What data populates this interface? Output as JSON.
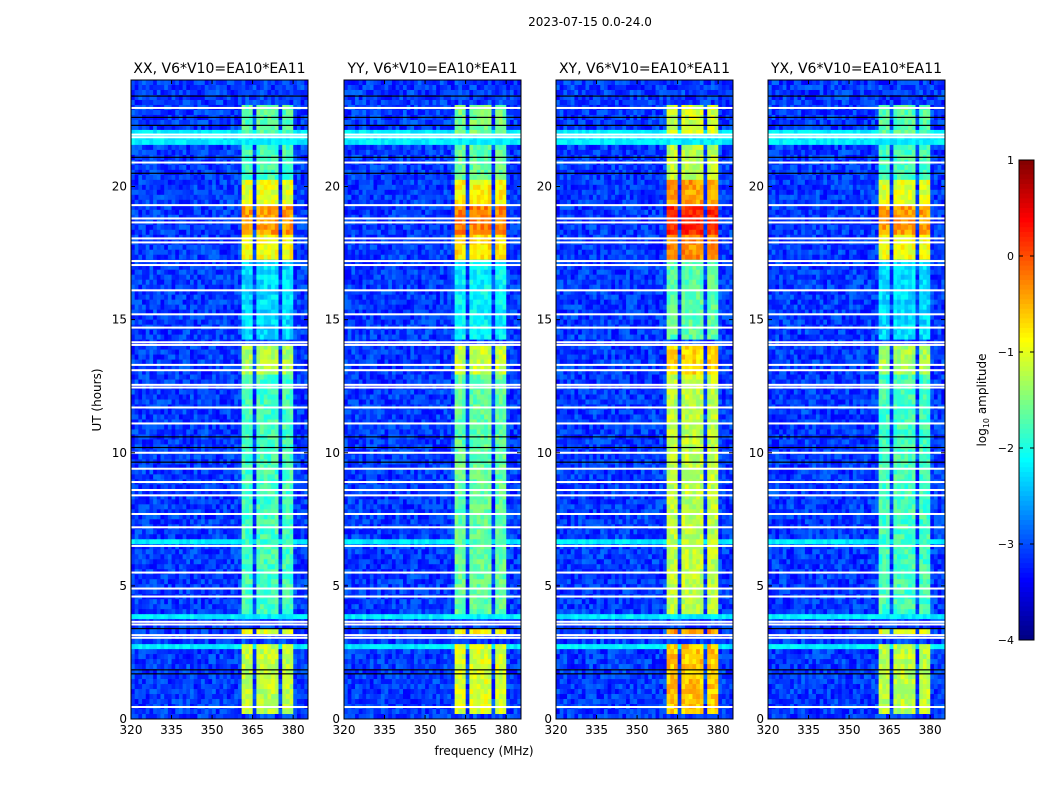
{
  "chart_data": {
    "type": "heatmap",
    "title": "2023-07-15 0.0-24.0",
    "xlabel": "frequency (MHz)",
    "ylabel": "UT (hours)",
    "xlim": [
      320,
      385.5
    ],
    "ylim": [
      0,
      24
    ],
    "xticks": [
      320,
      335,
      350,
      365,
      380
    ],
    "yticks": [
      0,
      5,
      10,
      15,
      20
    ],
    "colorbar": {
      "label": "log10 amplitude",
      "label_main": "log",
      "label_sub": "10",
      "label_rest": " amplitude",
      "range": [
        -4,
        1
      ],
      "ticks": [
        1,
        0,
        -1,
        -2,
        -3,
        -4
      ],
      "tick_labels": [
        "1",
        "0",
        "−1",
        "−2",
        "−3",
        "−4"
      ],
      "colormap": "jet"
    },
    "background_log_amplitude": -3.1,
    "rfi_channels_mhz": [
      [
        361,
        365
      ],
      [
        366,
        370
      ],
      [
        371,
        375
      ],
      [
        376,
        380
      ]
    ],
    "rfi_levels": [
      {
        "t": [
          0.2,
          2.8
        ],
        "level": -1.2
      },
      {
        "t": [
          3.2,
          3.4
        ],
        "level": -1.0
      },
      {
        "t": [
          4.0,
          13.0
        ],
        "level": -1.8
      },
      {
        "t": [
          13.0,
          14.0
        ],
        "level": -1.3
      },
      {
        "t": [
          14.2,
          17.3
        ],
        "level": -2.3
      },
      {
        "t": [
          17.3,
          18.1
        ],
        "level": -0.9
      },
      {
        "t": [
          18.1,
          19.4
        ],
        "level": -0.4
      },
      {
        "t": [
          19.4,
          20.2
        ],
        "level": -1.0
      },
      {
        "t": [
          20.2,
          21.5
        ],
        "level": -1.8
      },
      {
        "t": [
          22.0,
          23.0
        ],
        "level": -1.7
      }
    ],
    "broadband_bright_hours": [
      [
        21.6,
        22.2
      ],
      [
        3.7,
        4.0
      ],
      [
        2.7,
        2.9
      ],
      [
        6.5,
        6.7
      ]
    ],
    "flagged_hours_white": [
      0.45,
      3.05,
      3.15,
      3.55,
      3.65,
      4.6,
      4.9,
      5.5,
      6.5,
      7.2,
      7.7,
      8.4,
      8.6,
      8.9,
      9.4,
      10.0,
      11.1,
      11.7,
      12.45,
      12.55,
      13.1,
      13.3,
      14.05,
      14.15,
      14.7,
      15.2,
      16.1,
      17.05,
      17.2,
      17.9,
      18.05,
      18.65,
      18.8,
      19.3,
      20.9,
      21.85,
      21.95,
      22.95
    ],
    "flagged_hours_black": [
      1.7,
      1.85,
      3.4,
      9.65,
      10.2,
      10.6,
      20.5,
      21.1,
      22.3,
      22.6,
      23.4
    ],
    "panels": [
      {
        "title": "XX, V6*V10=EA10*EA11",
        "scale": 1.0
      },
      {
        "title": "YY, V6*V10=EA10*EA11",
        "scale": 0.95
      },
      {
        "title": "XY, V6*V10=EA10*EA11",
        "scale": 0.8
      },
      {
        "title": "YX, V6*V10=EA10*EA11",
        "scale": 1.0
      }
    ]
  }
}
